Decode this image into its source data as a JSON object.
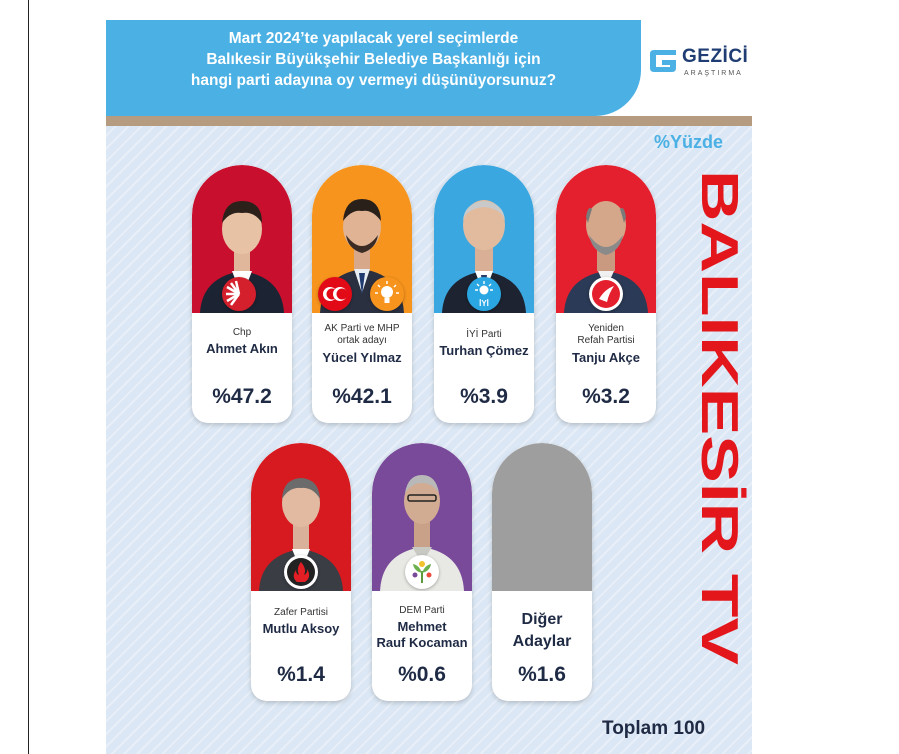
{
  "header": {
    "title_lines": [
      "Mart 2024’te yapılacak yerel seçimlerde",
      "Balıkesir Büyükşehir Belediye Başkanlığı için",
      "hangi parti adayına oy vermeyi düşünüyorsunuz?"
    ],
    "logo_text": "GEZİCİ",
    "logo_sub": "ARAŞTIRMA"
  },
  "unit_label": "%Yüzde",
  "watermark": "BALIKESİR TV",
  "total_label": "Toplam 100",
  "colors": {
    "chp": "#c8102e",
    "akp": "#f7941d",
    "iyi": "#3aa7e0",
    "yrp": "#e5202e",
    "zafer": "#d71920",
    "dem": "#7a4a9a",
    "other": "#9e9e9e",
    "title_bg": "#4bb0e4",
    "stripe": "#b59c80"
  },
  "chart_data": {
    "type": "bar",
    "categories": [
      "Ahmet Akın",
      "Yücel Yılmaz",
      "Turhan Çömez",
      "Tanju Akçe",
      "Mutlu Aksoy",
      "Mehmet Rauf Kocaman",
      "Diğer Adaylar"
    ],
    "values": [
      47.2,
      42.1,
      3.9,
      3.2,
      1.4,
      0.6,
      1.6
    ],
    "unit": "%"
  },
  "candidates": [
    {
      "party": "Chp",
      "name": "Ahmet Akın",
      "pct": "%47.2"
    },
    {
      "party": "AK Parti ve MHP ortak adayı",
      "party_l1": "AK Parti ve MHP",
      "party_l2": "ortak adayı",
      "name": "Yücel Yılmaz",
      "pct": "%42.1"
    },
    {
      "party": "İYİ Parti",
      "name": "Turhan Çömez",
      "pct": "%3.9"
    },
    {
      "party": "Yeniden Refah Partisi",
      "party_l1": "Yeniden",
      "party_l2": "Refah Partisi",
      "name": "Tanju Akçe",
      "pct": "%3.2"
    },
    {
      "party": "Zafer Partisi",
      "name": "Mutlu Aksoy",
      "pct": "%1.4"
    },
    {
      "party": "DEM Parti",
      "name_l1": "Mehmet",
      "name_l2": "Rauf Kocaman",
      "name": "Mehmet Rauf Kocaman",
      "pct": "%0.6"
    },
    {
      "name_l1": "Diğer",
      "name_l2": "Adaylar",
      "name": "Diğer Adaylar",
      "pct": "%1.6"
    }
  ]
}
